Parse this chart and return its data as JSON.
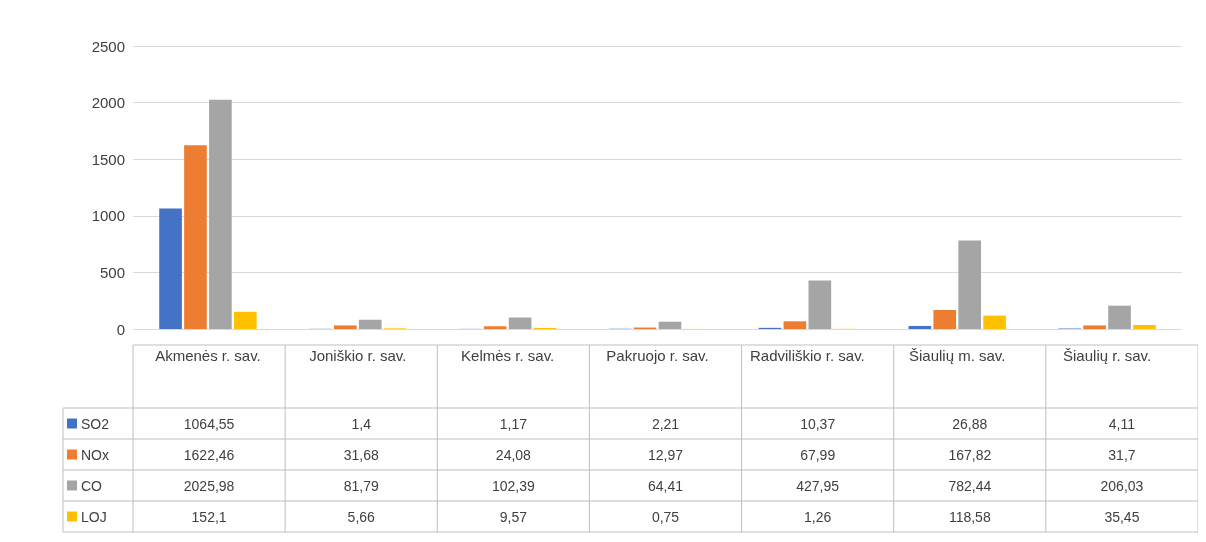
{
  "chart_data": {
    "type": "bar",
    "categories": [
      "Akmenės r. sav.",
      "Joniškio r. sav.",
      "Kelmės r. sav.",
      "Pakruojo r. sav.",
      "Radviliškio r. sav.",
      "Šiaulių m. sav.",
      "Šiaulių r. sav."
    ],
    "series": [
      {
        "name": "SO2",
        "color": "#4472c4",
        "values": [
          1064.55,
          1.4,
          1.17,
          2.21,
          10.37,
          26.88,
          4.11
        ],
        "value_labels": [
          "1064,55",
          "1,4",
          "1,17",
          "2,21",
          "10,37",
          "26,88",
          "4,11"
        ]
      },
      {
        "name": "NOx",
        "color": "#ed7d31",
        "values": [
          1622.46,
          31.68,
          24.08,
          12.97,
          67.99,
          167.82,
          31.7
        ],
        "value_labels": [
          "1622,46",
          "31,68",
          "24,08",
          "12,97",
          "67,99",
          "167,82",
          "31,7"
        ]
      },
      {
        "name": "CO",
        "color": "#a5a5a5",
        "values": [
          2025.98,
          81.79,
          102.39,
          64.41,
          427.95,
          782.44,
          206.03
        ],
        "value_labels": [
          "2025,98",
          "81,79",
          "102,39",
          "64,41",
          "427,95",
          "782,44",
          "206,03"
        ]
      },
      {
        "name": "LOJ",
        "color": "#ffc000",
        "values": [
          152.1,
          5.66,
          9.57,
          0.75,
          1.26,
          118.58,
          35.45
        ],
        "value_labels": [
          "152,1",
          "5,66",
          "9,57",
          "0,75",
          "1,26",
          "118,58",
          "35,45"
        ]
      }
    ],
    "ylim": [
      0,
      2500
    ],
    "yticks": [
      0,
      500,
      1000,
      1500,
      2000,
      2500
    ],
    "grid": "y",
    "legend": "bottom"
  }
}
